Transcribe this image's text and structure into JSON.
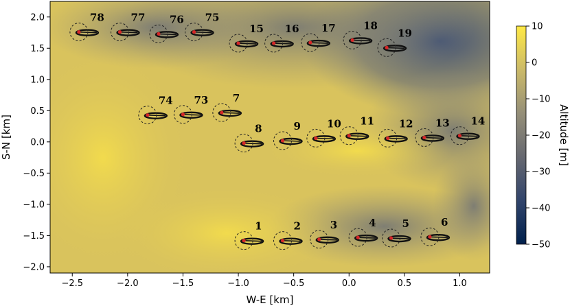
{
  "chart_data": {
    "type": "scatter",
    "title": "",
    "xlabel": "W-E [km]",
    "ylabel": "S-N [km]",
    "xlim": [
      -2.7,
      1.27
    ],
    "ylim": [
      -2.1,
      2.25
    ],
    "x_ticks": [
      -2.5,
      -2.0,
      -1.5,
      -1.0,
      -0.5,
      0.0,
      0.5,
      1.0
    ],
    "x_tick_labels": [
      "−2.5",
      "−2.0",
      "−1.5",
      "−1.0",
      "−0.5",
      "0.0",
      "0.5",
      "1.0"
    ],
    "y_ticks": [
      2.0,
      1.5,
      1.0,
      0.5,
      0.0,
      -0.5,
      -1.0,
      -1.5,
      -2.0
    ],
    "y_tick_labels": [
      "2.0",
      "1.5",
      "1.0",
      "0.5",
      "0.0",
      "−0.5",
      "−1.0",
      "−1.5",
      "−2.0"
    ],
    "colorbar": {
      "label": "Altitude [m]",
      "range": [
        -50,
        10
      ],
      "ticks": [
        10,
        0,
        -10,
        -20,
        -30,
        -40,
        -50
      ],
      "tick_labels": [
        "10",
        "0",
        "−10",
        "−20",
        "−30",
        "−40",
        "−50"
      ],
      "colormap": "cividis",
      "colors": [
        "#00204c",
        "#31446b",
        "#666870",
        "#958f78",
        "#cbba69",
        "#ffe945"
      ]
    },
    "grid": false,
    "station_marker_color": "#d62728",
    "stations": [
      {
        "label": "1",
        "x": -0.95,
        "y": -1.58
      },
      {
        "label": "2",
        "x": -0.6,
        "y": -1.58
      },
      {
        "label": "3",
        "x": -0.27,
        "y": -1.56
      },
      {
        "label": "4",
        "x": 0.08,
        "y": -1.53
      },
      {
        "label": "5",
        "x": 0.38,
        "y": -1.54
      },
      {
        "label": "6",
        "x": 0.73,
        "y": -1.52
      },
      {
        "label": "7",
        "x": -1.15,
        "y": 0.47
      },
      {
        "label": "8",
        "x": -0.95,
        "y": -0.02
      },
      {
        "label": "9",
        "x": -0.6,
        "y": 0.02
      },
      {
        "label": "10",
        "x": -0.3,
        "y": 0.06
      },
      {
        "label": "11",
        "x": 0.0,
        "y": 0.1
      },
      {
        "label": "12",
        "x": 0.35,
        "y": 0.06
      },
      {
        "label": "13",
        "x": 0.68,
        "y": 0.07
      },
      {
        "label": "14",
        "x": 1.0,
        "y": 0.1
      },
      {
        "label": "15",
        "x": -1.0,
        "y": 1.58
      },
      {
        "label": "16",
        "x": -0.68,
        "y": 1.58
      },
      {
        "label": "17",
        "x": -0.35,
        "y": 1.59
      },
      {
        "label": "18",
        "x": 0.03,
        "y": 1.63
      },
      {
        "label": "19",
        "x": 0.34,
        "y": 1.51
      },
      {
        "label": "73",
        "x": -1.5,
        "y": 0.44
      },
      {
        "label": "74",
        "x": -1.82,
        "y": 0.43
      },
      {
        "label": "75",
        "x": -1.4,
        "y": 1.76
      },
      {
        "label": "76",
        "x": -1.72,
        "y": 1.73
      },
      {
        "label": "77",
        "x": -2.07,
        "y": 1.76
      },
      {
        "label": "78",
        "x": -2.44,
        "y": 1.76
      }
    ]
  }
}
